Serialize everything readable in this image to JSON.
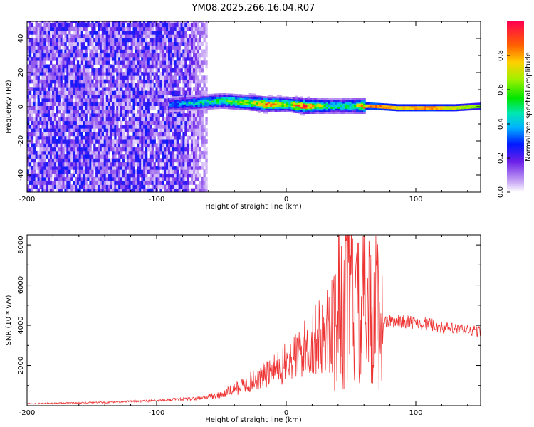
{
  "title": "YM08.2025.266.16.04.R07",
  "chart_data": [
    {
      "type": "heatmap",
      "xlabel": "Height of straight line (km)",
      "ylabel": "Frequency (Hz)",
      "xlim": [
        -200,
        150
      ],
      "ylim": [
        -50,
        50
      ],
      "xticks": [
        -200,
        -100,
        0,
        100
      ],
      "yticks": [
        -40,
        -20,
        0,
        20,
        40
      ],
      "colorbar": {
        "label": "Normalized spectral amplitude",
        "range": [
          0,
          1
        ],
        "ticks": [
          0.0,
          0.2,
          0.4,
          0.6,
          0.8
        ]
      },
      "grid": false,
      "noise_region_x": [
        -200,
        -62
      ],
      "signal_ridge": [
        {
          "x": -90,
          "freq": 1,
          "amp": 0.35
        },
        {
          "x": -70,
          "freq": 2,
          "amp": 0.45
        },
        {
          "x": -50,
          "freq": 3,
          "amp": 0.55
        },
        {
          "x": -30,
          "freq": 2,
          "amp": 0.7
        },
        {
          "x": -15,
          "freq": 1,
          "amp": 0.85
        },
        {
          "x": 0,
          "freq": 1,
          "amp": 0.6
        },
        {
          "x": 12,
          "freq": 0,
          "amp": 0.9
        },
        {
          "x": 30,
          "freq": 0,
          "amp": 0.55
        },
        {
          "x": 50,
          "freq": 0,
          "amp": 0.55
        },
        {
          "x": 65,
          "freq": 0,
          "amp": 1.0
        },
        {
          "x": 85,
          "freq": -1,
          "amp": 0.85
        },
        {
          "x": 110,
          "freq": -1,
          "amp": 0.95
        },
        {
          "x": 130,
          "freq": -1,
          "amp": 0.8
        },
        {
          "x": 150,
          "freq": 0,
          "amp": 0.7
        }
      ]
    },
    {
      "type": "line",
      "xlabel": "Height of straight line (km)",
      "ylabel": "SNR (10 * v/v)",
      "xlim": [
        -200,
        150
      ],
      "ylim": [
        0,
        8500
      ],
      "xticks": [
        -200,
        -100,
        0,
        100
      ],
      "yticks": [
        2000,
        4000,
        6000,
        8000
      ],
      "grid": false,
      "series": [
        {
          "color": "#ee3333",
          "x": [
            -200,
            -150,
            -100,
            -70,
            -50,
            -40,
            -30,
            -20,
            -10,
            0,
            10,
            20,
            30,
            35,
            40,
            45,
            50,
            55,
            60,
            65,
            70,
            75,
            80,
            90,
            100,
            110,
            120,
            130,
            140,
            150
          ],
          "y": [
            100,
            150,
            250,
            350,
            550,
            800,
            1100,
            1400,
            1700,
            2100,
            2600,
            3100,
            3600,
            3900,
            4200,
            4700,
            5400,
            4400,
            4900,
            4500,
            4700,
            4200,
            4200,
            4200,
            4150,
            4050,
            3900,
            3800,
            3750,
            3700
          ]
        }
      ]
    }
  ]
}
